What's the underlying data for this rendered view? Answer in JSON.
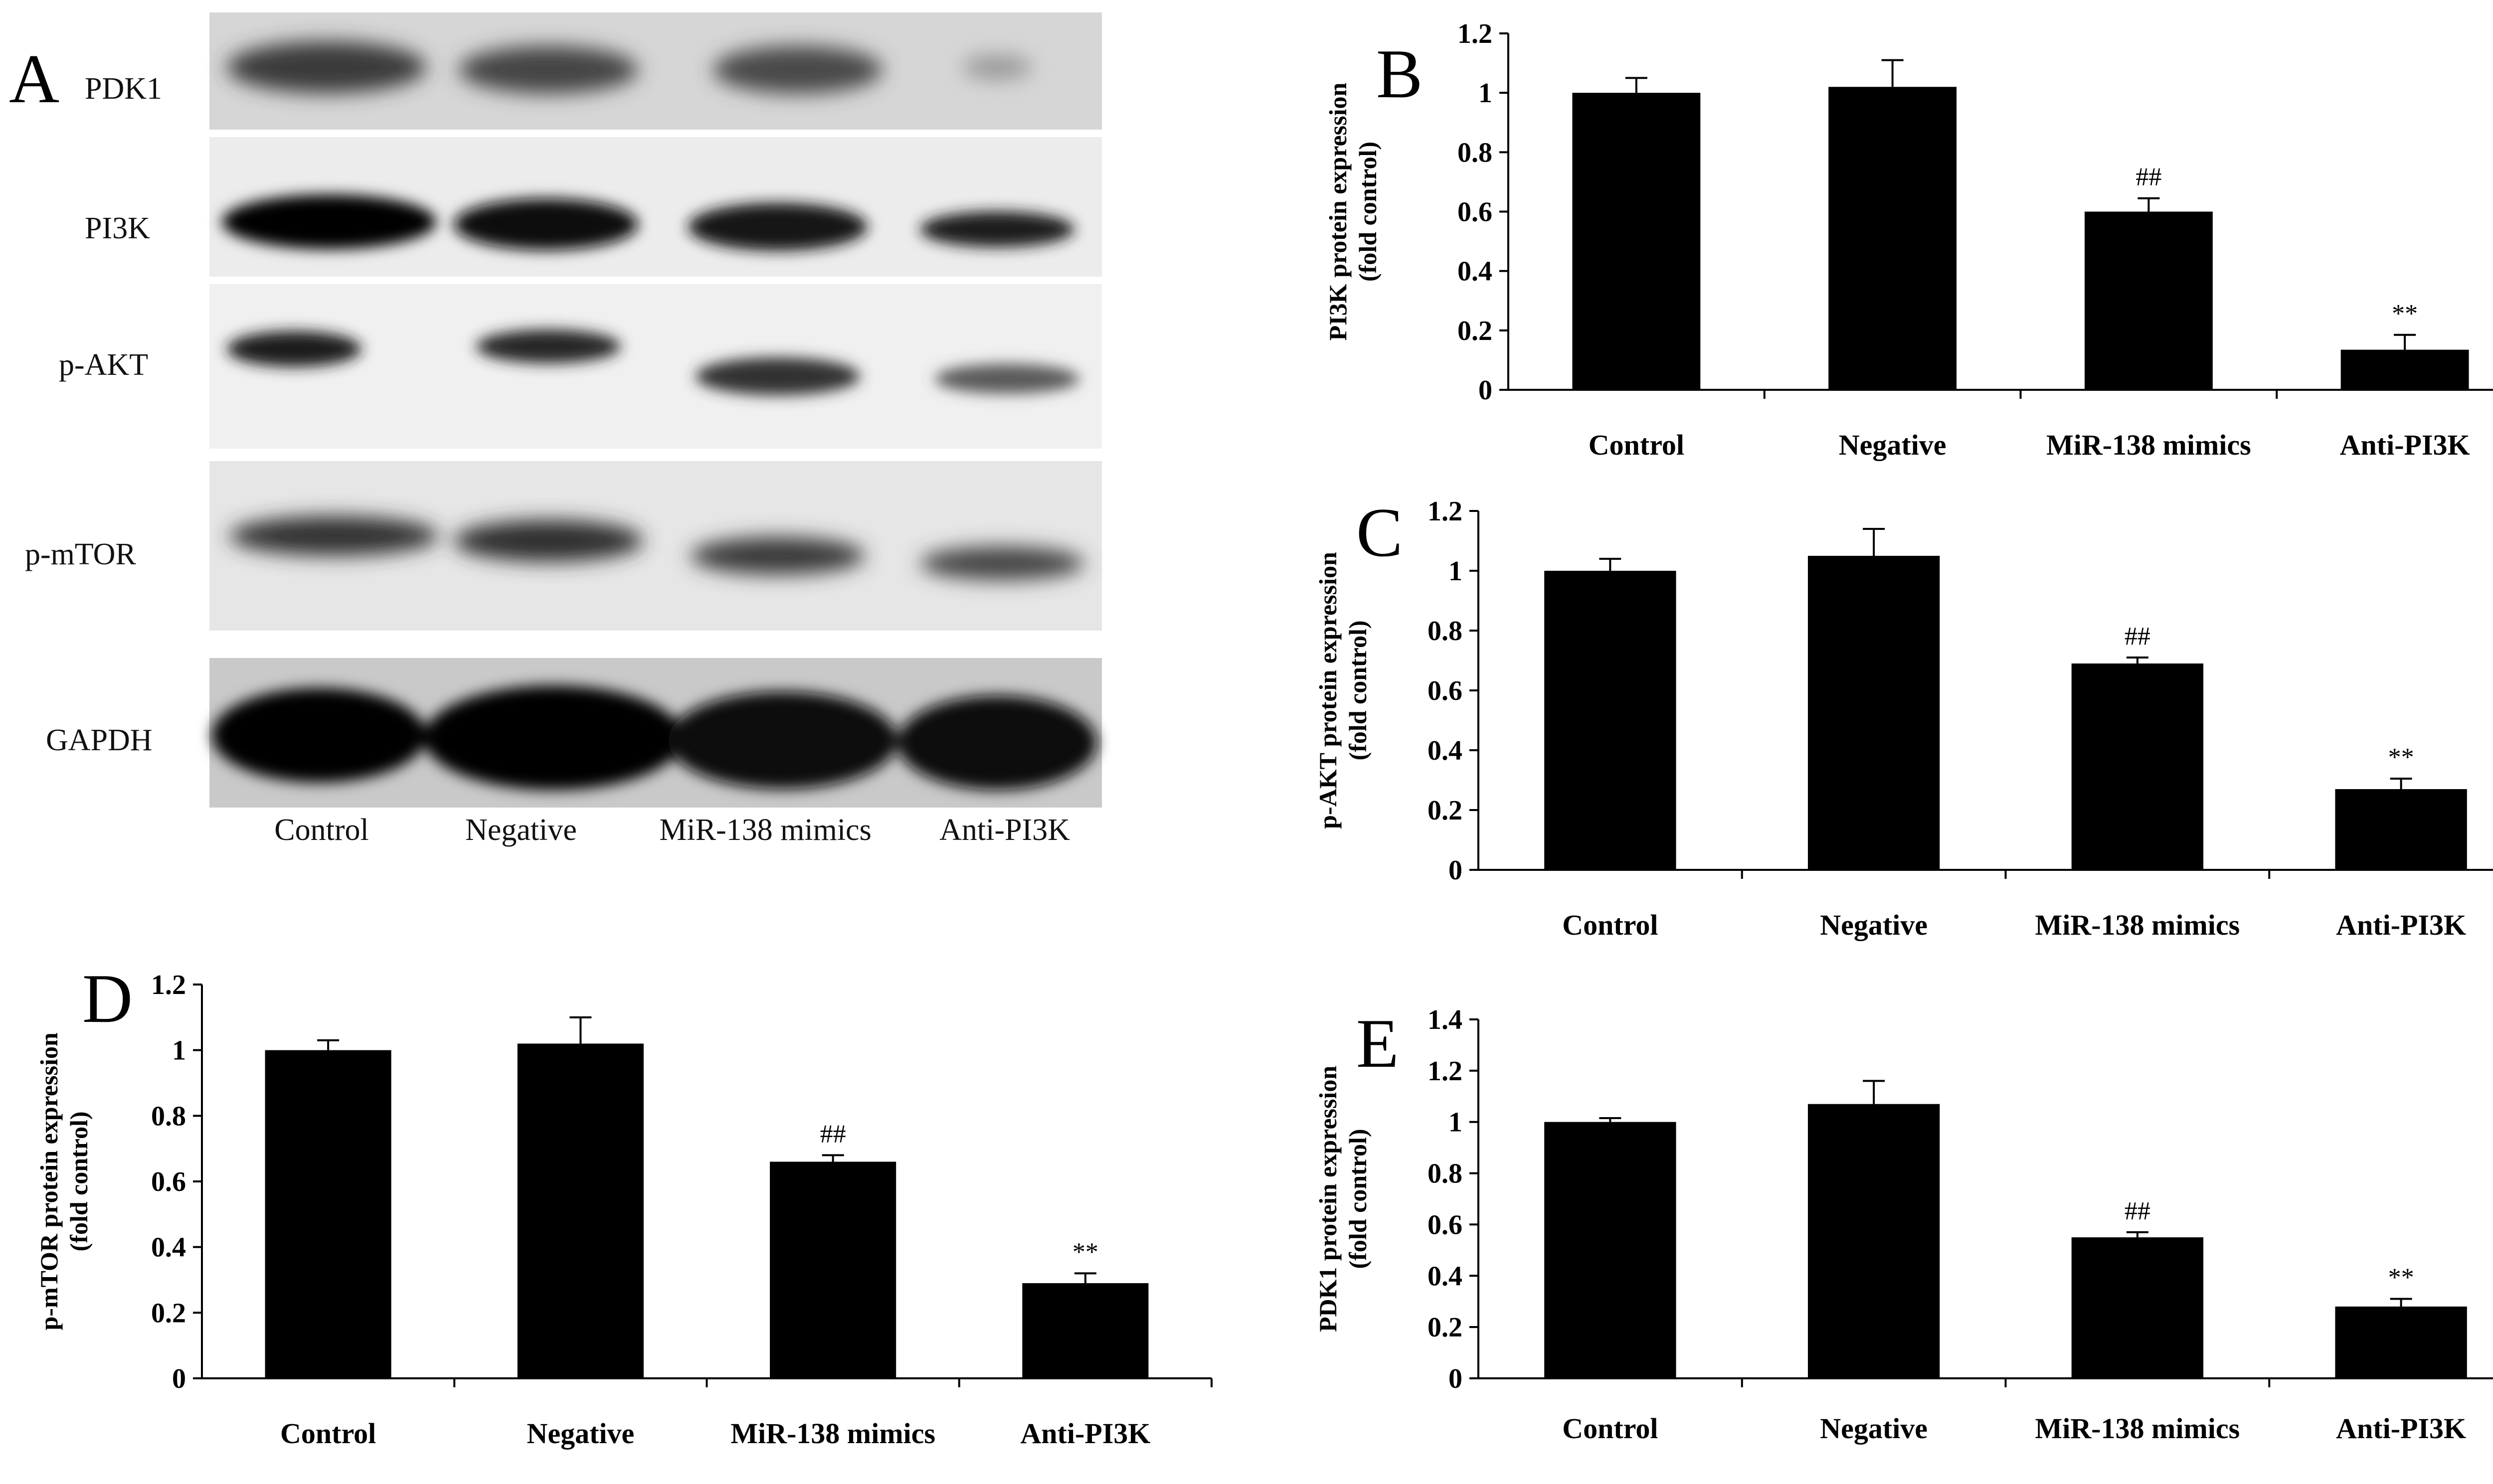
{
  "panel_a": {
    "letter": "A",
    "proteins": [
      "PDK1",
      "PI3K",
      "p-AKT",
      "p-mTOR",
      "GAPDH"
    ],
    "lanes": [
      "Control",
      "Negative",
      "MiR-138 mimics",
      "Anti-PI3K"
    ]
  },
  "chart_data": [
    {
      "type": "bar",
      "letter": "B",
      "categories": [
        "Control",
        "Negative",
        "MiR-138 mimics",
        "Anti-PI3K"
      ],
      "values": [
        1.0,
        1.02,
        0.6,
        0.135
      ],
      "errors": [
        0.05,
        0.09,
        0.045,
        0.05
      ],
      "annotations": [
        "",
        "",
        "##",
        "**"
      ],
      "ylabel_line1": "PI3K protein expression",
      "ylabel_line2": "(fold control)",
      "ylim": [
        0,
        1.2
      ],
      "yticks": [
        "0",
        "0.2",
        "0.4",
        "0.6",
        "0.8",
        "1",
        "1.2"
      ],
      "xlabel": "",
      "grid": false
    },
    {
      "type": "bar",
      "letter": "C",
      "categories": [
        "Control",
        "Negative",
        "MiR-138 mimics",
        "Anti-PI3K"
      ],
      "values": [
        1.0,
        1.05,
        0.69,
        0.27
      ],
      "errors": [
        0.04,
        0.09,
        0.02,
        0.035
      ],
      "annotations": [
        "",
        "",
        "##",
        "**"
      ],
      "ylabel_line1": "p-AKT protein expression",
      "ylabel_line2": "(fold control)",
      "ylim": [
        0,
        1.2
      ],
      "yticks": [
        "0",
        "0.2",
        "0.4",
        "0.6",
        "0.8",
        "1",
        "1.2"
      ],
      "xlabel": "",
      "grid": false
    },
    {
      "type": "bar",
      "letter": "D",
      "categories": [
        "Control",
        "Negative",
        "MiR-138 mimics",
        "Anti-PI3K"
      ],
      "values": [
        1.0,
        1.02,
        0.66,
        0.29
      ],
      "errors": [
        0.03,
        0.08,
        0.02,
        0.03
      ],
      "annotations": [
        "",
        "",
        "##",
        "**"
      ],
      "ylabel_line1": "p-mTOR protein expression",
      "ylabel_line2": "(fold control)",
      "ylim": [
        0,
        1.2
      ],
      "yticks": [
        "0",
        "0.2",
        "0.4",
        "0.6",
        "0.8",
        "1",
        "1.2"
      ],
      "xlabel": "",
      "grid": false
    },
    {
      "type": "bar",
      "letter": "E",
      "categories": [
        "Control",
        "Negative",
        "MiR-138 mimics",
        "Anti-PI3K"
      ],
      "values": [
        1.0,
        1.07,
        0.55,
        0.28
      ],
      "errors": [
        0.015,
        0.09,
        0.02,
        0.03
      ],
      "annotations": [
        "",
        "",
        "##",
        "**"
      ],
      "ylabel_line1": "PDK1 protein expression",
      "ylabel_line2": "(fold control)",
      "ylim": [
        0,
        1.4
      ],
      "yticks": [
        "0",
        "0.2",
        "0.4",
        "0.6",
        "0.8",
        "1",
        "1.2",
        "1.4"
      ],
      "xlabel": "",
      "grid": false
    }
  ]
}
